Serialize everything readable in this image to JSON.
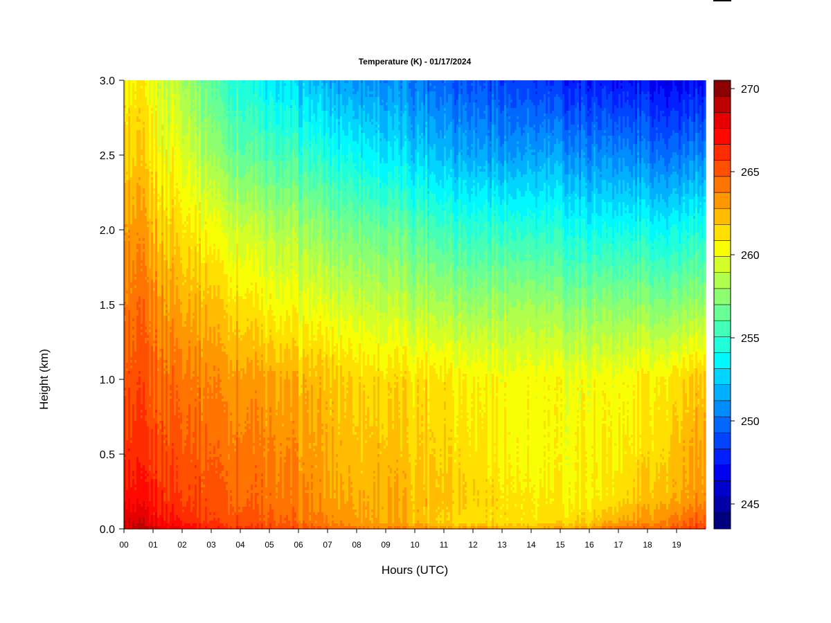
{
  "chart_data": {
    "type": "heatmap",
    "title": "Temperature (K) - 01/17/2024",
    "xlabel": "Hours (UTC)",
    "ylabel": "Height (km)",
    "xlim": [
      0,
      20
    ],
    "ylim": [
      0,
      3.0
    ],
    "x_ticks": [
      "00",
      "01",
      "02",
      "03",
      "04",
      "05",
      "06",
      "07",
      "08",
      "09",
      "10",
      "11",
      "12",
      "13",
      "14",
      "15",
      "16",
      "17",
      "18",
      "19"
    ],
    "y_ticks": [
      "0.0",
      "0.5",
      "1.0",
      "1.5",
      "2.0",
      "2.5",
      "3.0"
    ],
    "colorbar": {
      "min": 244,
      "max": 271,
      "step": 1,
      "ticks": [
        "245",
        "250",
        "255",
        "260",
        "265",
        "270"
      ],
      "colors": [
        "#00007f",
        "#0000a6",
        "#0000cc",
        "#0000f0",
        "#0020ff",
        "#0044ff",
        "#0068ff",
        "#008cff",
        "#00b0ff",
        "#00d4ff",
        "#00f8ff",
        "#20ffdc",
        "#44ffb8",
        "#68ff94",
        "#8cff70",
        "#b0ff4c",
        "#d4ff28",
        "#f8ff04",
        "#ffe000",
        "#ffbc00",
        "#ff9800",
        "#ff7400",
        "#ff5000",
        "#ff2c00",
        "#ff0800",
        "#e60000",
        "#bd0000",
        "#8b0000"
      ]
    },
    "hours": [
      0,
      1,
      2,
      3,
      4,
      5,
      6,
      7,
      8,
      9,
      10,
      11,
      12,
      13,
      14,
      15,
      16,
      17,
      18,
      19,
      20
    ],
    "heights_km": [
      0.0,
      0.05,
      0.2,
      0.5,
      1.0,
      1.5,
      2.0,
      2.5,
      3.0
    ],
    "values_K": [
      [
        270.5,
        270,
        268.5,
        267.5,
        266.5,
        265.5,
        264.5,
        263,
        262
      ],
      [
        270,
        269,
        268,
        267,
        266,
        265,
        263.5,
        262,
        261
      ],
      [
        269,
        268,
        267,
        266.5,
        265.5,
        264,
        262.5,
        261,
        259.5
      ],
      [
        268,
        267,
        266.5,
        266,
        265,
        263.5,
        261.5,
        259,
        257
      ],
      [
        267.5,
        266.5,
        266,
        265.5,
        264.5,
        262.5,
        260.5,
        257.5,
        255.5
      ],
      [
        267,
        266,
        265.5,
        265,
        264,
        261.5,
        259.5,
        256.5,
        254
      ],
      [
        266.5,
        265.5,
        265,
        264.5,
        263.5,
        261,
        259,
        256,
        253
      ],
      [
        266,
        265,
        264.5,
        264,
        263.5,
        261,
        258.5,
        255.5,
        252.5
      ],
      [
        265.5,
        264.5,
        264,
        263.5,
        263,
        260.5,
        258,
        255,
        252
      ],
      [
        265,
        264,
        264,
        263.5,
        262.5,
        260,
        257.5,
        254,
        251.5
      ],
      [
        265,
        263.5,
        263.5,
        263,
        262.5,
        259.5,
        257,
        253.5,
        251
      ],
      [
        264.5,
        263,
        263.5,
        263,
        262.5,
        259.5,
        256.5,
        253,
        250.5
      ],
      [
        264.5,
        262.5,
        263,
        262.5,
        262,
        259,
        256,
        252.5,
        250
      ],
      [
        264,
        262.5,
        262.5,
        262,
        261.5,
        259,
        256,
        252,
        249.5
      ],
      [
        264,
        262,
        262,
        261.5,
        261.5,
        259,
        255.5,
        252,
        249
      ],
      [
        264,
        262.5,
        262,
        261.5,
        261.5,
        258.5,
        255.5,
        252,
        248.5
      ],
      [
        264.5,
        263,
        262,
        262,
        261.5,
        258.5,
        255,
        251.5,
        248.5
      ],
      [
        265.5,
        264,
        262.5,
        262,
        261.5,
        258.5,
        255,
        251.5,
        248
      ],
      [
        266,
        264.5,
        263.5,
        262.5,
        262,
        258.5,
        255,
        251,
        248
      ],
      [
        266.5,
        265.5,
        264,
        263.5,
        262.5,
        258.5,
        255,
        251,
        247.5
      ],
      [
        267,
        266,
        264.5,
        264,
        263,
        258.5,
        255,
        251,
        247.5
      ]
    ]
  }
}
